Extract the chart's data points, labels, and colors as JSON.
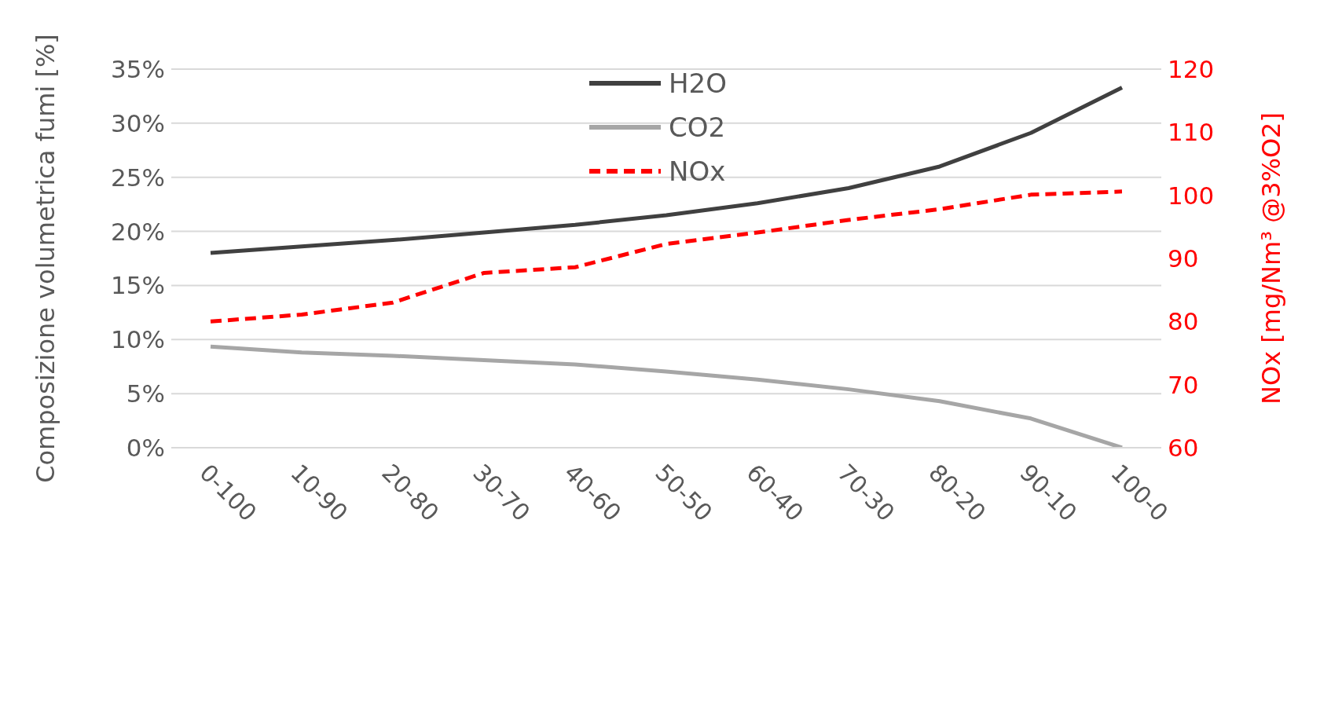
{
  "chart_data": {
    "type": "line",
    "categories": [
      "0-100",
      "10-90",
      "20-80",
      "30-70",
      "40-60",
      "50-50",
      "60-40",
      "70-30",
      "80-20",
      "90-10",
      "100-0"
    ],
    "ylabel": "Composizione volumetrica fumi [%]",
    "y2label": "NOx [mg/Nm³ @3%O2]",
    "ylim": [
      0,
      35
    ],
    "yticks": [
      {
        "value": 0,
        "label": "0%"
      },
      {
        "value": 5,
        "label": "5%"
      },
      {
        "value": 10,
        "label": "10%"
      },
      {
        "value": 15,
        "label": "15%"
      },
      {
        "value": 20,
        "label": "20%"
      },
      {
        "value": 25,
        "label": "25%"
      },
      {
        "value": 30,
        "label": "30%"
      },
      {
        "value": 35,
        "label": "35%"
      }
    ],
    "y2lim": [
      60,
      120
    ],
    "y2ticks": [
      60,
      70,
      80,
      90,
      100,
      110,
      120
    ],
    "grid": "y",
    "legend": "top",
    "marker": "none",
    "series": [
      {
        "name": "H2O",
        "color": "#404040",
        "line_style": "solid",
        "values": [
          18.0,
          18.6,
          19.2,
          19.9,
          20.6,
          21.5,
          22.6,
          24.0,
          26.0,
          29.1,
          33.3
        ]
      },
      {
        "name": "CO2",
        "color": "#a6a6a6",
        "line_style": "solid",
        "values": [
          9.35,
          8.8,
          8.5,
          8.1,
          7.7,
          7.05,
          6.3,
          5.4,
          4.3,
          2.7,
          0
        ]
      },
      {
        "name": "NOx",
        "color": "#ff0000",
        "line_style": "dashed",
        "axis": "y2",
        "values": [
          80,
          81.1,
          83,
          87.7,
          88.6,
          92.3,
          94.1,
          96.1,
          97.8,
          100.1,
          100.6
        ]
      }
    ]
  }
}
